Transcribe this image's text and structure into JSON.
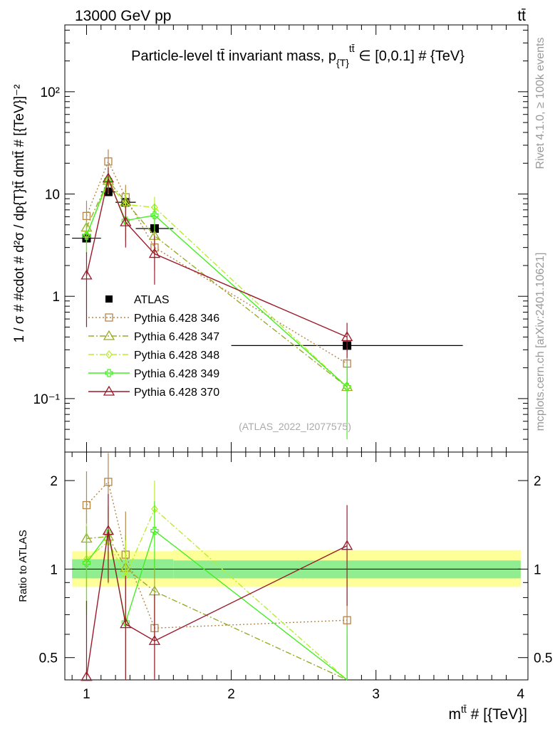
{
  "header": {
    "left": "13000 GeV pp",
    "right": "tt̄"
  },
  "side_labels": {
    "rivet": "Rivet 4.1.0, ≥ 100k events",
    "mcplots": "mcplots.cern.ch [arXiv:2401.10621]"
  },
  "chart_data": [
    {
      "type": "scatter",
      "panel": "main",
      "title": "Particle-level tt̄ invariant mass, p{T}tt̄ ∈ [0,0.1] # {TeV}",
      "title_parts": {
        "pre": "Particle-level tt̄ invariant mass, p",
        "sub": "{T}",
        "sup": "tt̄",
        "post": " ∈ [0,0.1] # {TeV}"
      },
      "ylabel": "1 / σ # #cdot # d²σ / dp{T}tt̄ dmtt̄ # [{TeV}]⁻²",
      "yscale": "log",
      "xlim": [
        0.85,
        4.05
      ],
      "ylim": [
        0.03,
        450
      ],
      "yticks": [
        {
          "value": 0.1,
          "label": "10⁻¹"
        },
        {
          "value": 1,
          "label": "1"
        },
        {
          "value": 10,
          "label": "10"
        },
        {
          "value": 100,
          "label": "10²"
        }
      ],
      "watermark": "(ATLAS_2022_I2077575)",
      "legend_position": "middle-left",
      "series": [
        {
          "name": "ATLAS",
          "color": "#000000",
          "marker": "square-filled",
          "line": "none",
          "x": [
            1.0,
            1.15,
            1.27,
            1.47,
            2.8
          ],
          "x_err": [
            0.1,
            0.05,
            0.07,
            0.13,
            0.8
          ],
          "y": [
            3.7,
            10.5,
            8.3,
            4.6,
            0.33
          ],
          "y_err": [
            [
              0.35,
              0.9,
              0.7,
              0.45,
              0.04
            ],
            [
              0.35,
              0.9,
              0.7,
              0.45,
              0.04
            ]
          ]
        },
        {
          "name": "Pythia 6.428 346",
          "color": "#b5854a",
          "marker": "square-open",
          "line": "dotted",
          "x": [
            1.0,
            1.15,
            1.27,
            1.47,
            2.8
          ],
          "y": [
            6.1,
            20.8,
            9.3,
            3.0,
            0.22
          ],
          "y_err": [
            [
              2.0,
              5.5,
              3.0,
              1.2,
              0.1
            ],
            [
              2.5,
              6.5,
              3.0,
              1.2,
              0.1
            ]
          ]
        },
        {
          "name": "Pythia 6.428 347",
          "color": "#9caa2a",
          "marker": "triangle-open",
          "line": "dashdot",
          "x": [
            1.0,
            1.15,
            1.27,
            1.47,
            2.8
          ],
          "y": [
            4.7,
            13.5,
            8.4,
            3.9,
            0.13
          ],
          "y_err": [
            [
              1.5,
              3.5,
              2.5,
              1.2,
              0.07
            ],
            [
              1.5,
              3.5,
              2.5,
              1.2,
              0.07
            ]
          ]
        },
        {
          "name": "Pythia 6.428 348",
          "color": "#b8ee2a",
          "marker": "diamond-open",
          "line": "dashdot",
          "x": [
            1.0,
            1.15,
            1.27,
            1.47,
            2.8
          ],
          "y": [
            4.0,
            13.0,
            7.9,
            7.4,
            0.13
          ],
          "y_err": [
            [
              1.3,
              3.0,
              2.5,
              2.0,
              0.07
            ],
            [
              1.3,
              3.0,
              2.5,
              2.0,
              0.07
            ]
          ]
        },
        {
          "name": "Pythia 6.428 349",
          "color": "#44ee22",
          "marker": "cross-open",
          "line": "solid",
          "x": [
            1.0,
            1.15,
            1.27,
            1.47,
            2.8
          ],
          "y": [
            3.9,
            13.8,
            5.5,
            6.2,
            0.13
          ],
          "y_err": [
            [
              1.3,
              3.0,
              2.0,
              1.8,
              0.09
            ],
            [
              1.3,
              3.0,
              2.0,
              1.8,
              0.09
            ]
          ]
        },
        {
          "name": "Pythia 6.428 370",
          "color": "#9b1a2a",
          "marker": "triangle-open",
          "line": "solid",
          "x": [
            1.0,
            1.15,
            1.27,
            1.47,
            2.8
          ],
          "y": [
            1.6,
            14.2,
            5.3,
            2.6,
            0.4
          ],
          "y_err": [
            [
              1.1,
              4.0,
              2.3,
              1.3,
              0.15
            ],
            [
              1.1,
              4.0,
              2.3,
              1.3,
              0.15
            ]
          ]
        }
      ]
    },
    {
      "type": "scatter",
      "panel": "ratio",
      "ylabel": "Ratio to ATLAS",
      "xlabel": "mtt̄ # [{TeV}]",
      "xlabel_parts": {
        "pre": "m",
        "sup": "tt̄",
        "post": " # [{TeV}]"
      },
      "yscale": "log",
      "xlim": [
        0.85,
        4.05
      ],
      "ylim": [
        0.42,
        2.5
      ],
      "xticks": [
        1,
        2,
        3,
        4
      ],
      "yticks": [
        {
          "value": 0.5,
          "label": "0.5"
        },
        {
          "value": 1,
          "label": "1"
        },
        {
          "value": 2,
          "label": "2"
        }
      ],
      "bands": [
        {
          "x0": 0.9,
          "x1": 1.6,
          "inner": [
            0.93,
            1.08
          ],
          "outer": [
            0.87,
            1.15
          ]
        },
        {
          "x0": 1.6,
          "x1": 4.0,
          "inner": [
            0.93,
            1.07
          ],
          "outer": [
            0.87,
            1.16
          ]
        }
      ],
      "band_colors": {
        "inner": "#90ee90",
        "outer": "#ffff99"
      },
      "series": [
        {
          "name": "Pythia 6.428 346",
          "x": [
            1.0,
            1.15,
            1.27,
            1.47,
            2.8
          ],
          "y": [
            1.65,
            1.98,
            1.12,
            0.63,
            0.67
          ],
          "y_err": [
            0.5,
            0.5,
            0.45,
            0.2,
            0.25
          ]
        },
        {
          "name": "Pythia 6.428 347",
          "x": [
            1.0,
            1.15,
            1.27,
            1.47,
            2.8
          ],
          "y": [
            1.27,
            1.29,
            1.01,
            0.84,
            0.39
          ],
          "y_err": [
            0.4,
            0.35,
            0.3,
            0.25,
            0.2
          ]
        },
        {
          "name": "Pythia 6.428 348",
          "x": [
            1.0,
            1.15,
            1.27,
            1.47,
            2.8
          ],
          "y": [
            1.08,
            1.24,
            0.95,
            1.6,
            0.39
          ],
          "y_err": [
            0.35,
            0.35,
            0.3,
            0.4,
            0.2
          ]
        },
        {
          "name": "Pythia 6.428 349",
          "x": [
            1.0,
            1.15,
            1.27,
            1.47,
            2.8
          ],
          "y": [
            1.05,
            1.32,
            0.66,
            1.35,
            0.39
          ],
          "y_err": [
            0.35,
            0.3,
            0.25,
            0.35,
            0.25
          ]
        },
        {
          "name": "Pythia 6.428 370",
          "x": [
            1.0,
            1.15,
            1.27,
            1.47,
            2.8
          ],
          "y": [
            0.43,
            1.35,
            0.65,
            0.57,
            1.2
          ],
          "y_err": [
            0.35,
            0.45,
            0.3,
            0.25,
            0.45
          ]
        }
      ]
    }
  ]
}
